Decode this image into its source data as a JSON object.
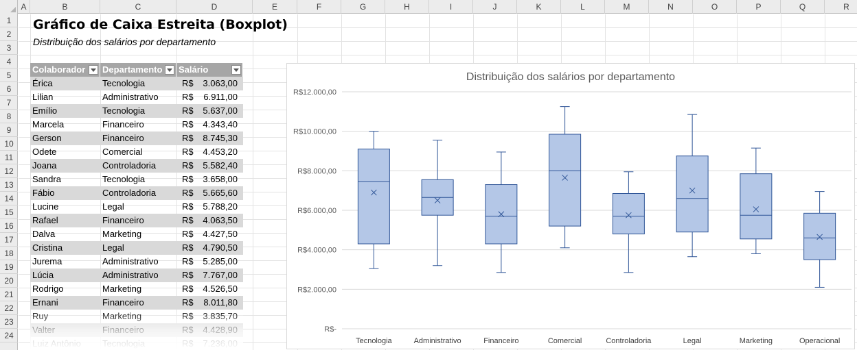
{
  "sheet": {
    "columns": [
      "A",
      "B",
      "C",
      "D",
      "E",
      "F",
      "G",
      "H",
      "I",
      "J",
      "K",
      "L",
      "M",
      "N",
      "O",
      "P",
      "Q",
      "R"
    ],
    "rows": [
      1,
      2,
      3,
      4,
      5,
      6,
      7,
      8,
      9,
      10,
      11,
      12,
      13,
      14,
      15,
      16,
      17,
      18,
      19,
      20,
      21,
      22,
      23,
      24
    ],
    "title": "Gráfico de Caixa Estreita (Boxplot)",
    "subtitle": "Distribuição dos salários por departamento"
  },
  "table": {
    "headers": [
      "Colaborador",
      "Departamento",
      "Salário"
    ],
    "currency": "R$",
    "rows": [
      {
        "name": "Érica",
        "dept": "Tecnologia",
        "salary": "3.063,00"
      },
      {
        "name": "Lilian",
        "dept": "Administrativo",
        "salary": "6.911,00"
      },
      {
        "name": "Emílio",
        "dept": "Tecnologia",
        "salary": "5.637,00"
      },
      {
        "name": "Marcela",
        "dept": "Financeiro",
        "salary": "4.343,40"
      },
      {
        "name": "Gerson",
        "dept": "Financeiro",
        "salary": "8.745,30"
      },
      {
        "name": "Odete",
        "dept": "Comercial",
        "salary": "4.453,20"
      },
      {
        "name": "Joana",
        "dept": "Controladoria",
        "salary": "5.582,40"
      },
      {
        "name": "Sandra",
        "dept": "Tecnologia",
        "salary": "3.658,00"
      },
      {
        "name": "Fábio",
        "dept": "Controladoria",
        "salary": "5.665,60"
      },
      {
        "name": "Lucine",
        "dept": "Legal",
        "salary": "5.788,20"
      },
      {
        "name": "Rafael",
        "dept": "Financeiro",
        "salary": "4.063,50"
      },
      {
        "name": "Dalva",
        "dept": "Marketing",
        "salary": "4.427,50"
      },
      {
        "name": "Cristina",
        "dept": "Legal",
        "salary": "4.790,50"
      },
      {
        "name": "Jurema",
        "dept": "Administrativo",
        "salary": "5.285,00"
      },
      {
        "name": "Lúcia",
        "dept": "Administrativo",
        "salary": "7.767,00"
      },
      {
        "name": "Rodrigo",
        "dept": "Marketing",
        "salary": "4.526,50"
      },
      {
        "name": "Ernani",
        "dept": "Financeiro",
        "salary": "8.011,80"
      },
      {
        "name": "Ruy",
        "dept": "Marketing",
        "salary": "3.835,70"
      },
      {
        "name": "Valter",
        "dept": "Financeiro",
        "salary": "4.428,90"
      },
      {
        "name": "Luiz Antônio",
        "dept": "Tecnologia",
        "salary": "7.236,00"
      }
    ]
  },
  "chart_data": {
    "type": "boxplot",
    "title": "Distribuição dos salários por departamento",
    "ylim": [
      0,
      12000
    ],
    "y_ticks": [
      0,
      2000,
      4000,
      6000,
      8000,
      10000,
      12000
    ],
    "y_tick_labels": [
      "R$-",
      "R$2.000,00",
      "R$4.000,00",
      "R$6.000,00",
      "R$8.000,00",
      "R$10.000,00",
      "R$12.000,00"
    ],
    "categories": [
      "Tecnologia",
      "Administrativo",
      "Financeiro",
      "Comercial",
      "Controladoria",
      "Legal",
      "Marketing",
      "Operacional"
    ],
    "boxes": [
      {
        "min": 3050,
        "q1": 4300,
        "median": 7450,
        "q3": 9100,
        "max": 10000,
        "mean": 6900
      },
      {
        "min": 3200,
        "q1": 5750,
        "median": 6650,
        "q3": 7550,
        "max": 9550,
        "mean": 6500
      },
      {
        "min": 2850,
        "q1": 4300,
        "median": 5700,
        "q3": 7300,
        "max": 8950,
        "mean": 5800
      },
      {
        "min": 4100,
        "q1": 5200,
        "median": 8000,
        "q3": 9850,
        "max": 11250,
        "mean": 7650
      },
      {
        "min": 2850,
        "q1": 4800,
        "median": 5700,
        "q3": 6850,
        "max": 7950,
        "mean": 5750
      },
      {
        "min": 3650,
        "q1": 4900,
        "median": 6600,
        "q3": 8750,
        "max": 10850,
        "mean": 7000
      },
      {
        "min": 3800,
        "q1": 4550,
        "median": 5750,
        "q3": 7850,
        "max": 9150,
        "mean": 6050
      },
      {
        "min": 2100,
        "q1": 3500,
        "median": 4600,
        "q3": 5850,
        "max": 6950,
        "mean": 4650
      }
    ],
    "colors": {
      "fill": "#b4c7e7",
      "stroke": "#2f5597",
      "grid": "#d9d9d9"
    },
    "grid": true,
    "legend": "none"
  }
}
